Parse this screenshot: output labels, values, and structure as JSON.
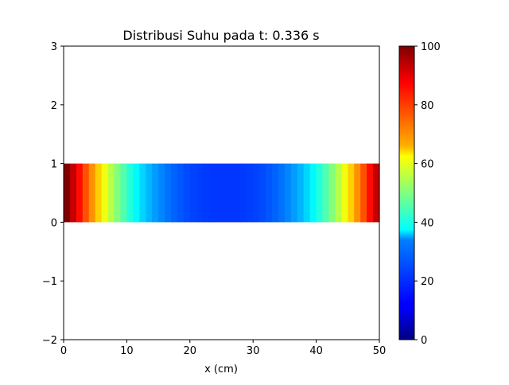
{
  "chart_data": {
    "type": "heatmap",
    "title": "Distribusi Suhu pada t: 0.336 s",
    "xlabel": "x (cm)",
    "ylabel": "",
    "xlim": [
      0,
      50
    ],
    "ylim": [
      -2,
      3
    ],
    "band_y": [
      0,
      1
    ],
    "cell_width": 1,
    "xticks": [
      "0",
      "10",
      "20",
      "30",
      "40",
      "50"
    ],
    "yticks": [
      "−2",
      "−1",
      "0",
      "1",
      "2",
      "3"
    ],
    "colormap": "jet",
    "colorbar": {
      "min": 0,
      "max": 100,
      "ticks": [
        "0",
        "20",
        "40",
        "60",
        "80",
        "100"
      ]
    },
    "values": [
      100,
      93.2,
      86.4,
      79.7,
      73.3,
      67.1,
      61.1,
      55.5,
      50.2,
      45.4,
      41.0,
      37.0,
      33.5,
      30.4,
      27.8,
      25.6,
      23.7,
      22.2,
      20.9,
      19.9,
      19.1,
      18.6,
      18.2,
      17.9,
      17.8,
      17.8,
      17.8,
      17.9,
      18.2,
      18.6,
      19.1,
      19.9,
      20.9,
      22.2,
      23.7,
      25.6,
      27.8,
      30.4,
      33.5,
      37.0,
      41.0,
      45.4,
      50.2,
      55.5,
      61.1,
      67.1,
      73.3,
      79.7,
      86.4,
      93.2
    ]
  }
}
